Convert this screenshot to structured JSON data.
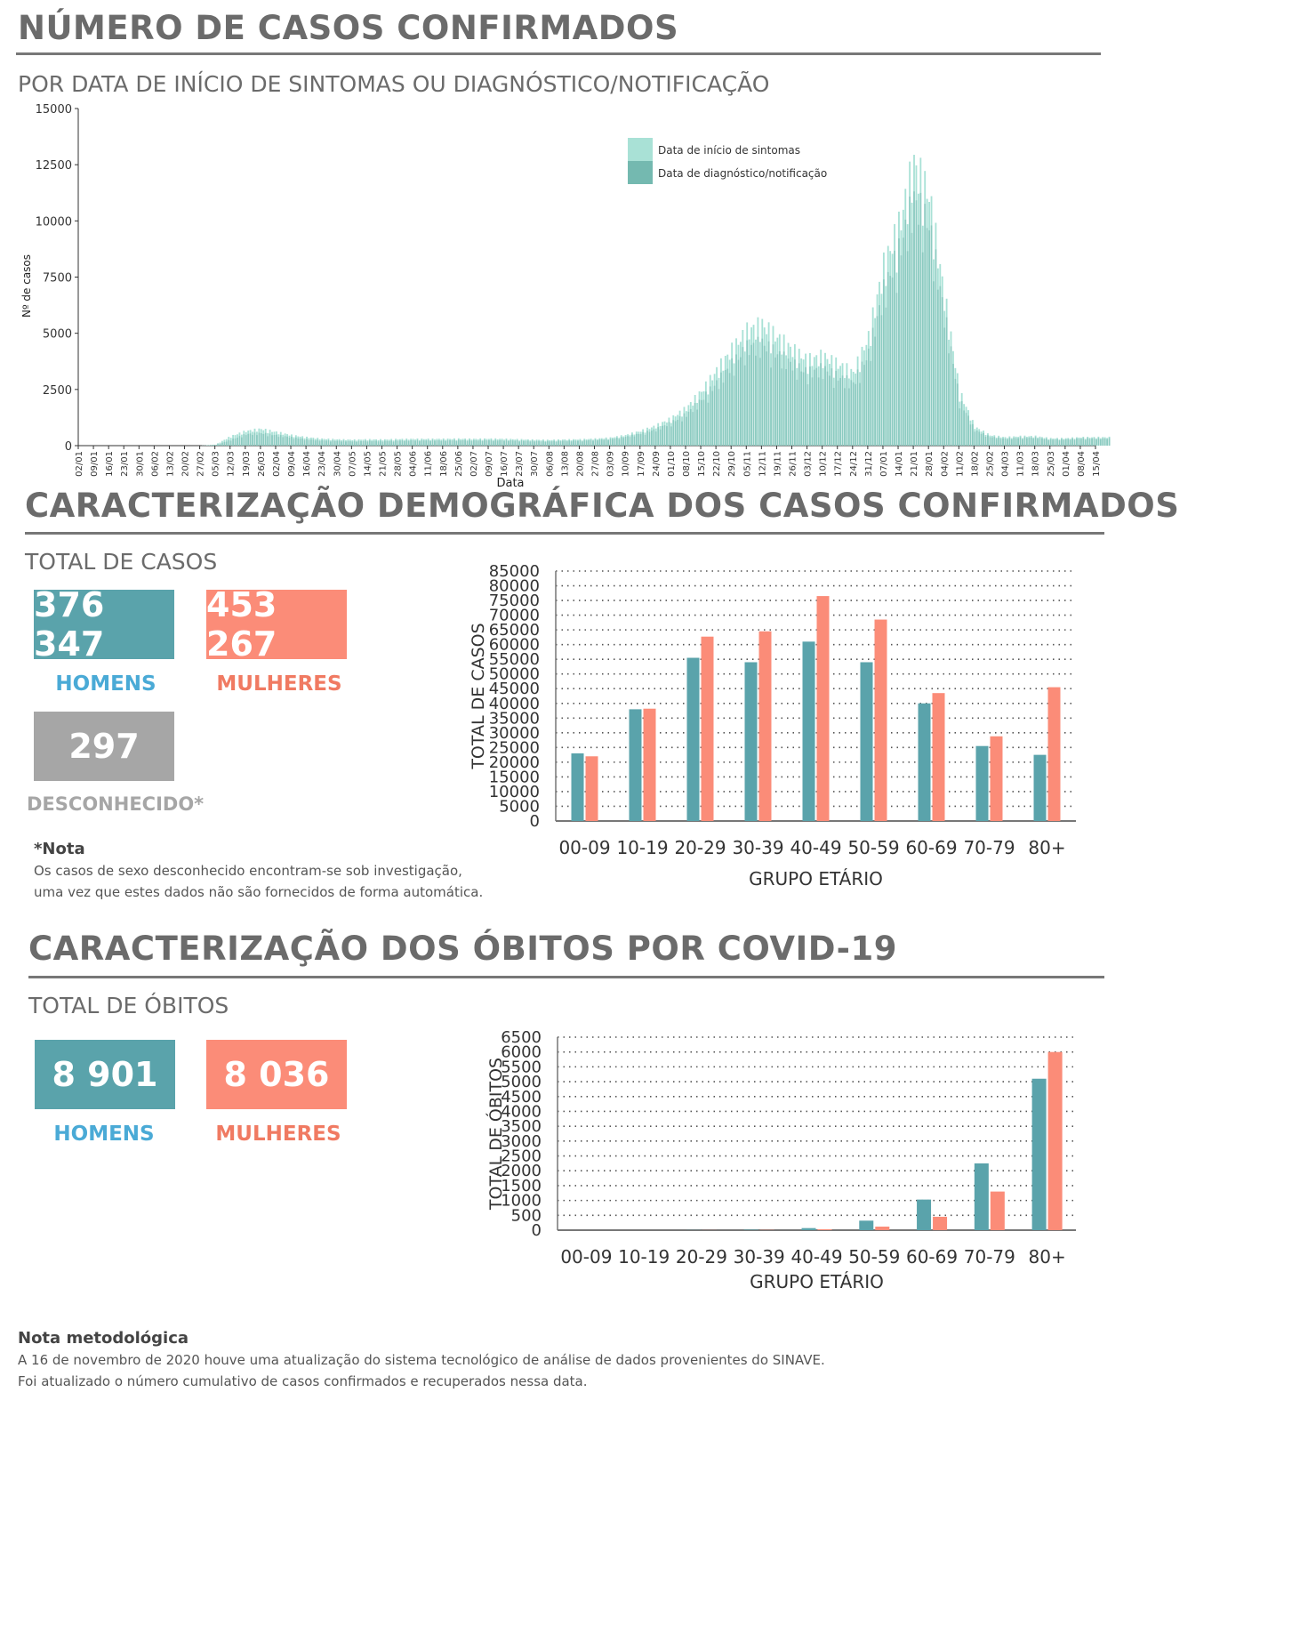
{
  "colors": {
    "teal": "#5aa3ab",
    "salmon": "#fb8c78",
    "gray": "#a6a6a6",
    "onset": "#a9e1d6",
    "diagnosis": "#74b9b0",
    "label_blue": "#4aaad6",
    "label_salmon": "#f07a62"
  },
  "section1": {
    "title": "NÚMERO DE CASOS CONFIRMADOS",
    "subtitle": "POR DATA DE INÍCIO DE SINTOMAS OU DIAGNÓSTICO/NOTIFICAÇÃO"
  },
  "section2": {
    "title": "CARACTERIZAÇÃO DEMOGRÁFICA DOS CASOS CONFIRMADOS",
    "total_label": "TOTAL DE CASOS",
    "men_value": "376 347",
    "men_label": "HOMENS",
    "women_value": "453 267",
    "women_label": "MULHERES",
    "unknown_value": "297",
    "unknown_label": "DESCONHECIDO*",
    "note_title": "*Nota",
    "note_line1": "Os casos de sexo desconhecido encontram-se sob investigação,",
    "note_line2": "uma vez que estes dados não são fornecidos de forma automática."
  },
  "section3": {
    "title": "CARACTERIZAÇÃO DOS ÓBITOS POR COVID-19",
    "total_label": "TOTAL DE ÓBITOS",
    "men_value": "8 901",
    "men_label": "HOMENS",
    "women_value": "8 036",
    "women_label": "MULHERES"
  },
  "footer": {
    "title": "Nota metodológica",
    "line1": "A 16 de novembro de 2020 houve uma atualização do sistema tecnológico de análise de dados provenientes do SINAVE.",
    "line2": "Foi atualizado o número cumulativo de casos confirmados e recuperados nessa data."
  },
  "chart_data": [
    {
      "type": "bar",
      "xlabel": "Data",
      "ylabel": "Nº de casos",
      "ylim": [
        0,
        15000
      ],
      "yticks": [
        0,
        2500,
        5000,
        7500,
        10000,
        12500,
        15000
      ],
      "legend_position": "top-right",
      "categories": [
        "02/01",
        "09/01",
        "16/01",
        "23/01",
        "30/01",
        "06/02",
        "13/02",
        "20/02",
        "27/02",
        "05/03",
        "12/03",
        "19/03",
        "26/03",
        "02/04",
        "09/04",
        "16/04",
        "23/04",
        "30/04",
        "07/05",
        "14/05",
        "21/05",
        "28/05",
        "04/06",
        "11/06",
        "18/06",
        "25/06",
        "02/07",
        "09/07",
        "16/07",
        "23/07",
        "30/07",
        "06/08",
        "13/08",
        "20/08",
        "27/08",
        "03/09",
        "10/09",
        "17/09",
        "24/09",
        "01/10",
        "08/10",
        "15/10",
        "22/10",
        "29/10",
        "05/11",
        "12/11",
        "19/11",
        "26/11",
        "03/12",
        "10/12",
        "17/12",
        "24/12",
        "31/12",
        "07/01",
        "14/01",
        "21/01",
        "28/01",
        "04/02",
        "11/02",
        "18/02",
        "25/02",
        "04/03",
        "11/03",
        "18/03",
        "25/03",
        "01/04",
        "08/04",
        "15/04"
      ],
      "series": [
        {
          "name": "Data de início de sintomas",
          "values": [
            0,
            0,
            0,
            0,
            0,
            0,
            0,
            0,
            0,
            50,
            450,
            700,
            800,
            650,
            500,
            400,
            330,
            300,
            280,
            300,
            290,
            310,
            320,
            320,
            320,
            330,
            320,
            330,
            320,
            300,
            280,
            270,
            290,
            300,
            330,
            380,
            500,
            700,
            950,
            1300,
            1800,
            2600,
            3600,
            4600,
            5500,
            5800,
            5200,
            4600,
            4100,
            4300,
            3900,
            3500,
            5200,
            8600,
            10500,
            13500,
            12000,
            7200,
            2600,
            900,
            500,
            400,
            450,
            450,
            350,
            350,
            400,
            400
          ]
        },
        {
          "name": "Data de diagnóstico/notificação",
          "values": [
            0,
            0,
            0,
            0,
            0,
            0,
            0,
            0,
            0,
            30,
            280,
            550,
            600,
            500,
            400,
            300,
            250,
            230,
            210,
            230,
            220,
            240,
            250,
            250,
            250,
            260,
            250,
            260,
            250,
            240,
            220,
            210,
            230,
            240,
            270,
            310,
            420,
            580,
            780,
            1100,
            1500,
            2200,
            3000,
            3900,
            4700,
            4900,
            4400,
            3900,
            3500,
            3700,
            3300,
            3000,
            4400,
            7400,
            9300,
            11800,
            10600,
            6300,
            2200,
            750,
            420,
            330,
            380,
            380,
            290,
            300,
            340,
            340
          ]
        }
      ]
    },
    {
      "type": "bar",
      "xlabel": "GRUPO ETÁRIO",
      "ylabel": "TOTAL DE CASOS",
      "ylim": [
        0,
        85000
      ],
      "yticks": [
        0,
        5000,
        10000,
        15000,
        20000,
        25000,
        30000,
        35000,
        40000,
        45000,
        50000,
        55000,
        60000,
        65000,
        70000,
        75000,
        80000,
        85000
      ],
      "grid": true,
      "categories": [
        "00-09",
        "10-19",
        "20-29",
        "30-39",
        "40-49",
        "50-59",
        "60-69",
        "70-79",
        "80+"
      ],
      "series": [
        {
          "values": [
            23000,
            38000,
            55500,
            54000,
            61000,
            54000,
            40000,
            25500,
            22500
          ]
        },
        {
          "values": [
            22000,
            38200,
            62700,
            64500,
            76500,
            68500,
            43500,
            28800,
            45500
          ]
        }
      ]
    },
    {
      "type": "bar",
      "xlabel": "GRUPO ETÁRIO",
      "ylabel": "TOTAL DE ÓBITOS",
      "ylim": [
        0,
        6500
      ],
      "yticks": [
        0,
        500,
        1000,
        1500,
        2000,
        2500,
        3000,
        3500,
        4000,
        4500,
        5000,
        5500,
        6000,
        6500
      ],
      "grid": true,
      "categories": [
        "00-09",
        "10-19",
        "20-29",
        "30-39",
        "40-49",
        "50-59",
        "60-69",
        "70-79",
        "80+"
      ],
      "series": [
        {
          "values": [
            0,
            0,
            5,
            15,
            70,
            320,
            1030,
            2250,
            5100
          ]
        },
        {
          "values": [
            0,
            0,
            3,
            8,
            30,
            120,
            450,
            1300,
            6000
          ]
        }
      ]
    }
  ]
}
